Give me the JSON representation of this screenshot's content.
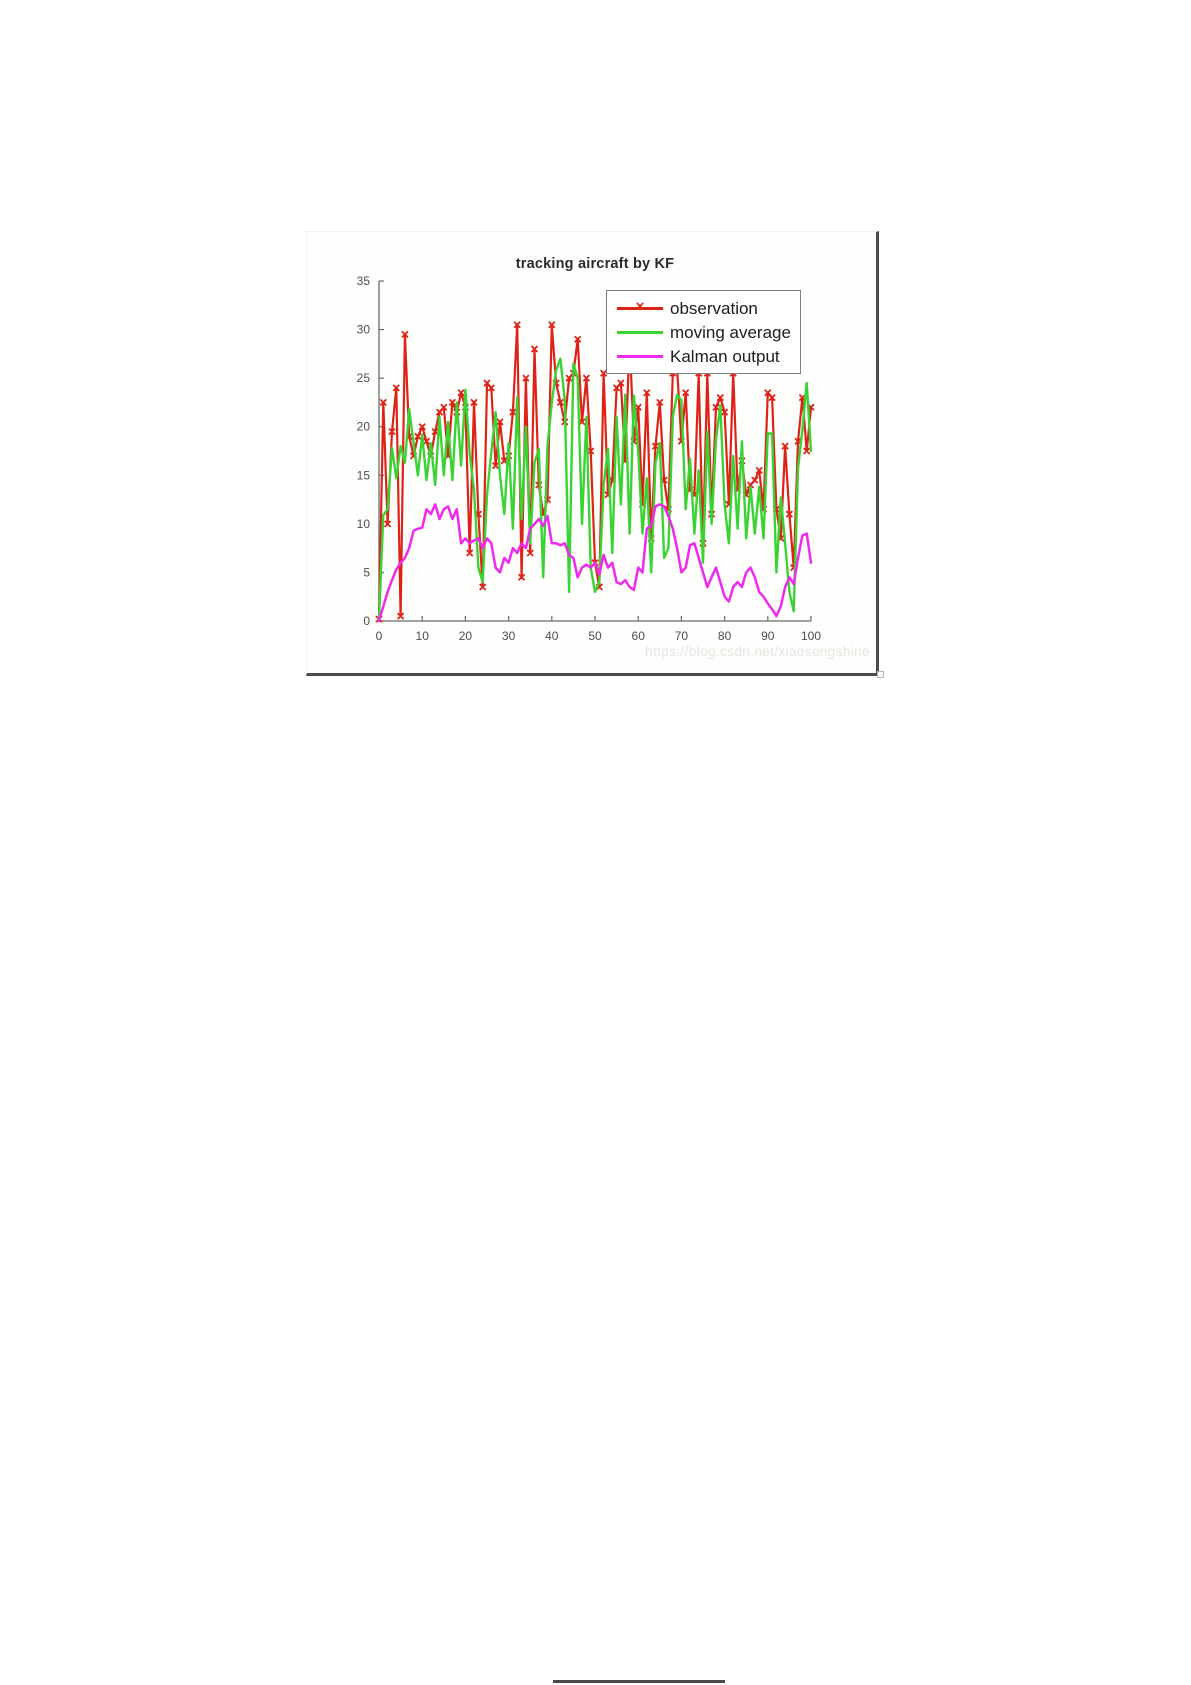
{
  "page": {
    "background": "#ffffff",
    "bottom_artifact_color": "#4a4a4a"
  },
  "figure": {
    "watermark_text": "https://blog.csdn.net/xiaosongshine",
    "frame_border_color": "#4b4b48",
    "background": "#fefefd"
  },
  "chart_data": {
    "type": "line",
    "title": "tracking aircraft by KF",
    "xlabel": "",
    "ylabel": "",
    "xlim": [
      0,
      100
    ],
    "ylim": [
      0,
      35
    ],
    "x_ticks": [
      0,
      10,
      20,
      30,
      40,
      50,
      60,
      70,
      80,
      90,
      100
    ],
    "y_ticks": [
      0,
      5,
      10,
      15,
      20,
      25,
      30,
      35
    ],
    "x_start": 0,
    "x_step": 1,
    "grid": false,
    "axis_color": "#6a6a6a",
    "tick_label_color": "#4d4d4d",
    "title_color": "#2b2b2b",
    "legend": {
      "position": "top-right",
      "border_color": "#7d7d7d",
      "background": "#ffffff",
      "text_color": "#1c1c1c"
    },
    "series": [
      {
        "name": "observation",
        "color": "#dd2318",
        "marker": "x",
        "line_width": 2.2,
        "values": [
          0.2,
          22.5,
          10,
          19.5,
          24,
          0.5,
          29.5,
          19,
          17,
          19,
          20,
          18.5,
          17,
          19.5,
          21.5,
          22,
          17,
          22.5,
          21.5,
          23.5,
          22,
          7,
          22.5,
          11,
          3.5,
          24.5,
          24,
          16,
          20.5,
          16.5,
          17,
          21.5,
          30.5,
          4.5,
          25,
          7,
          28,
          14,
          11,
          12.5,
          30.5,
          24.5,
          22.5,
          20.5,
          25,
          25.5,
          29,
          20.5,
          25,
          17.5,
          6,
          3.5,
          25.5,
          13,
          14.5,
          24,
          24.5,
          16.5,
          29,
          18.5,
          22,
          12,
          23.5,
          8.5,
          18,
          22.5,
          14.5,
          11.5,
          25.5,
          26,
          18.5,
          23.5,
          13.5,
          13,
          25.5,
          8,
          25.5,
          11,
          22,
          23,
          21.5,
          12,
          25.5,
          13.5,
          16.5,
          13,
          14,
          14.5,
          15.5,
          11.5,
          23.5,
          23,
          11.5,
          8.5,
          18,
          11,
          5.5,
          18.5,
          23,
          17.5,
          22
        ]
      },
      {
        "name": "moving average",
        "color": "#3bd334",
        "marker": "none",
        "line_width": 2.4,
        "values": [
          0.2,
          10.9,
          11.5,
          17.8,
          14.7,
          18,
          16.3,
          21.8,
          18.3,
          15,
          19.2,
          14.5,
          18.3,
          14,
          21,
          15,
          20.5,
          14.5,
          22.5,
          16,
          23.8,
          17.2,
          13.5,
          5.5,
          4,
          13,
          17.3,
          21.5,
          15,
          11,
          18.3,
          9.5,
          23,
          10.5,
          20,
          8,
          16.3,
          17.7,
          4.5,
          18,
          22.5,
          25.8,
          27,
          22.7,
          3,
          26.5,
          25,
          10,
          21,
          5.5,
          3,
          4,
          14,
          17.7,
          7,
          21,
          12,
          23.3,
          9,
          23.2,
          17.5,
          9,
          14.7,
          5,
          16.3,
          18.3,
          6.5,
          7.5,
          21,
          23.3,
          22.7,
          11.5,
          16.7,
          9,
          15.5,
          6,
          19.5,
          10,
          18.7,
          22.2,
          12,
          8,
          17,
          9.5,
          18.5,
          8.5,
          13.8,
          9,
          13.8,
          8.5,
          19.3,
          19.3,
          5,
          12.7,
          8,
          3,
          1,
          15.7,
          19.7,
          24.5,
          17.5
        ]
      },
      {
        "name": "Kalman output",
        "color": "#ee2aee",
        "marker": "none",
        "line_width": 2.5,
        "values": [
          0,
          1.5,
          3,
          4.2,
          5.3,
          6,
          6.5,
          7.5,
          9.3,
          9.5,
          9.6,
          11.5,
          11,
          12,
          10.5,
          11.5,
          11.8,
          10.5,
          11.5,
          8,
          8.5,
          8,
          8.3,
          8.5,
          7.5,
          8.5,
          8,
          5.5,
          5,
          6.5,
          6,
          7.5,
          7,
          8,
          7.5,
          9.5,
          10,
          10.5,
          9.8,
          10.8,
          8,
          8,
          7.8,
          8,
          6.8,
          6.5,
          4.5,
          5.5,
          5.8,
          5.5,
          6,
          4.8,
          6.8,
          5.5,
          6,
          4,
          3.8,
          4.2,
          3.5,
          3.2,
          5.5,
          5,
          9.5,
          9.8,
          11.8,
          12,
          11.8,
          10.8,
          9.5,
          7.5,
          5,
          5.5,
          7.8,
          8,
          6.5,
          5,
          3.5,
          4.5,
          5.5,
          4,
          2.5,
          2,
          3.5,
          4,
          3.5,
          5,
          5.5,
          4.5,
          3,
          2.5,
          1.8,
          1.2,
          0.5,
          1.5,
          3.5,
          4.5,
          3.8,
          6.5,
          8.8,
          9,
          6
        ]
      }
    ]
  }
}
